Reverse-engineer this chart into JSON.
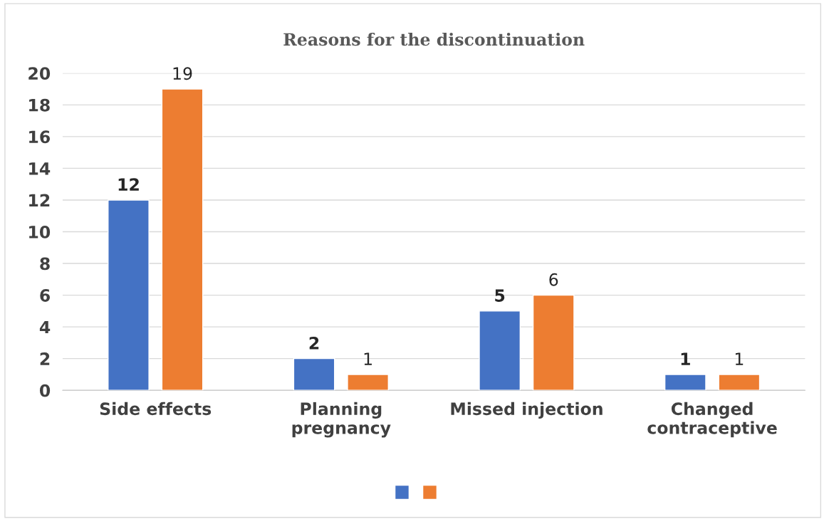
{
  "chart_data": {
    "type": "bar",
    "title": "Reasons for the discontinuation",
    "categories": [
      "Side effects",
      "Planning\npregnancy",
      "Missed injection",
      "Changed\ncontraceptive"
    ],
    "series": [
      {
        "color": "#4472c4",
        "values": [
          12,
          2,
          5,
          1
        ]
      },
      {
        "color": "#ed7d31",
        "values": [
          19,
          1,
          6,
          1
        ]
      }
    ],
    "ylim": [
      0,
      20
    ],
    "yticks": [
      0,
      2,
      4,
      6,
      8,
      10,
      12,
      14,
      16,
      18,
      20
    ],
    "grid": "y",
    "data_labels": true
  }
}
